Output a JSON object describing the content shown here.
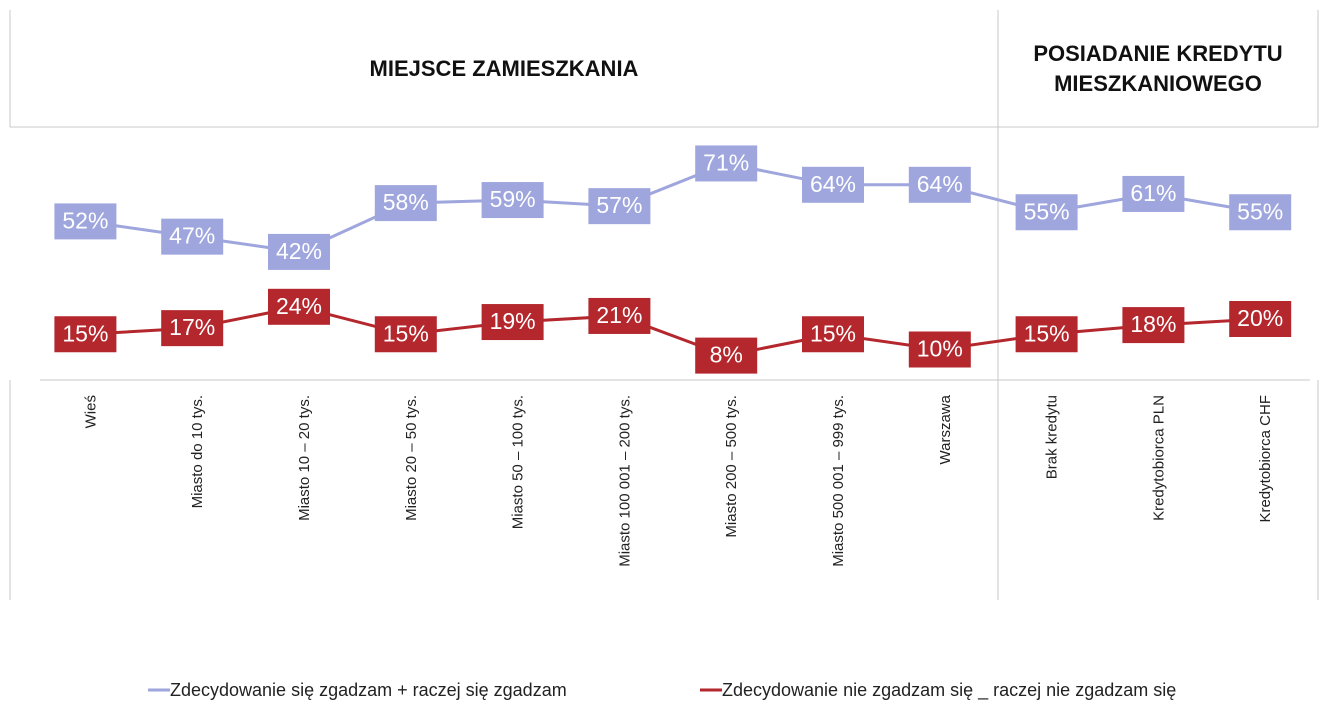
{
  "chart_data": {
    "type": "line",
    "group_labels": [
      "MIEJSCE ZAMIESZKANIA",
      "POSIADANIE KREDYTU MIESZKANIOWEGO"
    ],
    "categories": [
      "Wieś",
      "Miasto do 10 tys.",
      "Miasto 10 – 20 tys.",
      "Miasto 20 – 50 tys.",
      "Miasto 50 – 100 tys.",
      "Miasto 100 001 – 200 tys.",
      "Miasto 200 – 500 tys.",
      "Miasto 500 001 – 999 tys.",
      "Warszawa",
      "Brak kredytu",
      "Kredytobiorca  PLN",
      "Kredytobiorca CHF"
    ],
    "series": [
      {
        "name": "Zdecydowanie się zgadzam + raczej się zgadzam",
        "color": "#9ea6dd",
        "values": [
          52,
          47,
          42,
          58,
          59,
          57,
          71,
          64,
          64,
          55,
          61,
          55
        ],
        "value_labels": [
          "52%",
          "47%",
          "42%",
          "58%",
          "59%",
          "57%",
          "71%",
          "64%",
          "64%",
          "55%",
          "61%",
          "55%"
        ]
      },
      {
        "name": "Zdecydowanie nie zgadzam się _ raczej nie zgadzam się",
        "color": "#b3272d",
        "values": [
          15,
          17,
          24,
          15,
          19,
          21,
          8,
          15,
          10,
          15,
          18,
          20
        ],
        "value_labels": [
          "15%",
          "17%",
          "24%",
          "15%",
          "19%",
          "21%",
          "8%",
          "15%",
          "10%",
          "15%",
          "18%",
          "20%"
        ]
      }
    ],
    "ylim": [
      0,
      80
    ]
  }
}
